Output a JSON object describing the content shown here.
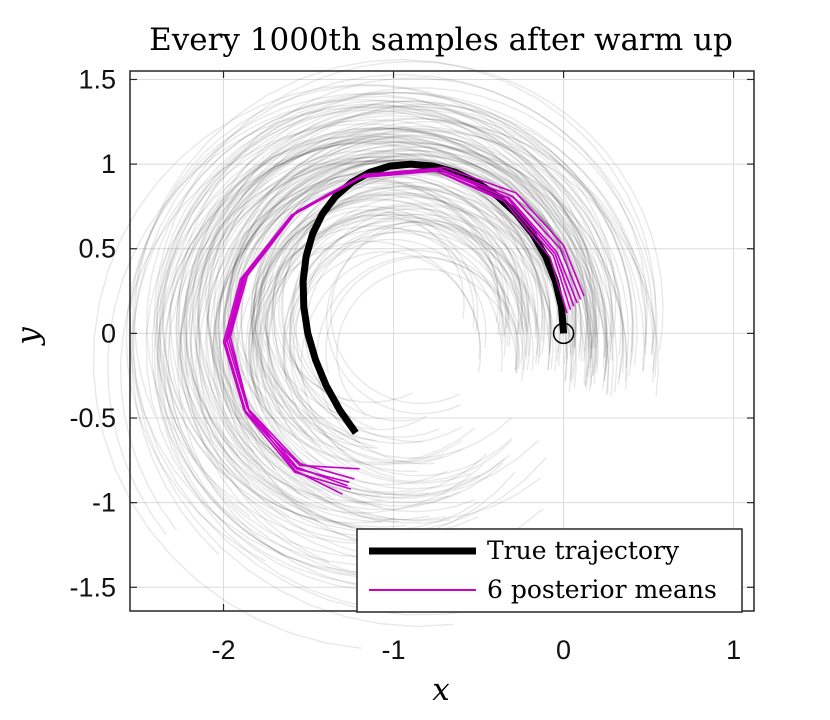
{
  "chart_data": {
    "type": "line",
    "title": "Every 1000th samples after warm up",
    "xlabel": "x",
    "ylabel": "y",
    "xlim": [
      -2.55,
      1.12
    ],
    "ylim": [
      -1.64,
      1.55
    ],
    "grid": true,
    "x_ticks": [
      {
        "value": -2,
        "label": "-2"
      },
      {
        "value": -1,
        "label": "-1"
      },
      {
        "value": 0,
        "label": "0"
      },
      {
        "value": 1,
        "label": "1"
      }
    ],
    "y_ticks": [
      {
        "value": 1.5,
        "label": "1.5"
      },
      {
        "value": 1,
        "label": "1"
      },
      {
        "value": 0.5,
        "label": "0.5"
      },
      {
        "value": 0,
        "label": "0"
      },
      {
        "value": -0.5,
        "label": "-0.5"
      },
      {
        "value": -1,
        "label": "-1"
      },
      {
        "value": -1.5,
        "label": "-1.5"
      }
    ],
    "start_marker": {
      "name": "start",
      "x": 0,
      "y": 0
    },
    "series": [
      {
        "name": "True trajectory",
        "color": "#000000",
        "style": "thick",
        "x": [
          0.0,
          -0.012,
          -0.048,
          -0.105,
          -0.183,
          -0.278,
          -0.388,
          -0.508,
          -0.635,
          -0.766,
          -0.897,
          -1.023,
          -1.141,
          -1.248,
          -1.341,
          -1.418,
          -1.476,
          -1.514,
          -1.532,
          -1.528,
          -1.504,
          -1.459,
          -1.396,
          -1.316,
          -1.222
        ],
        "y": [
          0.0,
          0.156,
          0.309,
          0.454,
          0.588,
          0.707,
          0.809,
          0.891,
          0.951,
          0.988,
          1.0,
          0.988,
          0.951,
          0.891,
          0.809,
          0.707,
          0.588,
          0.454,
          0.309,
          0.156,
          0.0,
          -0.156,
          -0.309,
          -0.454,
          -0.588
        ]
      }
    ],
    "posterior_means": {
      "legend_label": "6 posterior means",
      "color": "#c800c8",
      "lines": [
        {
          "x": [
            0.02,
            -0.08,
            -0.35,
            -0.75,
            -1.2,
            -1.6,
            -1.9,
            -2.0,
            -1.88,
            -1.55,
            -1.2
          ],
          "y": [
            0.12,
            0.45,
            0.78,
            0.96,
            0.92,
            0.7,
            0.32,
            -0.05,
            -0.45,
            -0.78,
            -0.8
          ]
        },
        {
          "x": [
            0.06,
            -0.05,
            -0.33,
            -0.74,
            -1.18,
            -1.58,
            -1.88,
            -1.98,
            -1.86,
            -1.55,
            -1.23
          ],
          "y": [
            0.16,
            0.47,
            0.8,
            0.97,
            0.93,
            0.71,
            0.33,
            -0.04,
            -0.44,
            -0.77,
            -0.86
          ]
        },
        {
          "x": [
            0.1,
            -0.02,
            -0.3,
            -0.72,
            -1.17,
            -1.57,
            -1.87,
            -1.97,
            -1.85,
            -1.57,
            -1.27
          ],
          "y": [
            0.2,
            0.5,
            0.81,
            0.97,
            0.94,
            0.72,
            0.34,
            -0.03,
            -0.45,
            -0.79,
            -0.9
          ]
        },
        {
          "x": [
            0.12,
            0.0,
            -0.28,
            -0.7,
            -1.16,
            -1.57,
            -1.86,
            -1.96,
            -1.85,
            -1.58,
            -1.3
          ],
          "y": [
            0.22,
            0.52,
            0.83,
            0.98,
            0.94,
            0.72,
            0.34,
            -0.02,
            -0.46,
            -0.81,
            -0.95
          ]
        },
        {
          "x": [
            0.08,
            -0.04,
            -0.32,
            -0.73,
            -1.18,
            -1.58,
            -1.88,
            -1.99,
            -1.87,
            -1.58,
            -1.25
          ],
          "y": [
            0.18,
            0.48,
            0.8,
            0.97,
            0.93,
            0.71,
            0.33,
            -0.06,
            -0.47,
            -0.82,
            -0.92
          ]
        },
        {
          "x": [
            0.04,
            -0.06,
            -0.34,
            -0.75,
            -1.19,
            -1.59,
            -1.89,
            -1.99,
            -1.87,
            -1.57,
            -1.26
          ],
          "y": [
            0.14,
            0.46,
            0.79,
            0.96,
            0.92,
            0.7,
            0.32,
            -0.05,
            -0.46,
            -0.8,
            -0.88
          ]
        }
      ]
    },
    "samples": {
      "description": "Every 1000th sample after warm up",
      "color": "#000000",
      "count": 150,
      "radius_range": [
        0.55,
        1.45
      ],
      "center": [
        -1.0,
        0.0
      ],
      "arc_deg_range": [
        200,
        330
      ]
    },
    "legend": {
      "position": "bottom-right",
      "entries": [
        {
          "label": "True trajectory",
          "color": "#000000",
          "style": "thick"
        },
        {
          "label": "6 posterior means",
          "color": "#c800c8",
          "style": "thin"
        }
      ]
    }
  }
}
